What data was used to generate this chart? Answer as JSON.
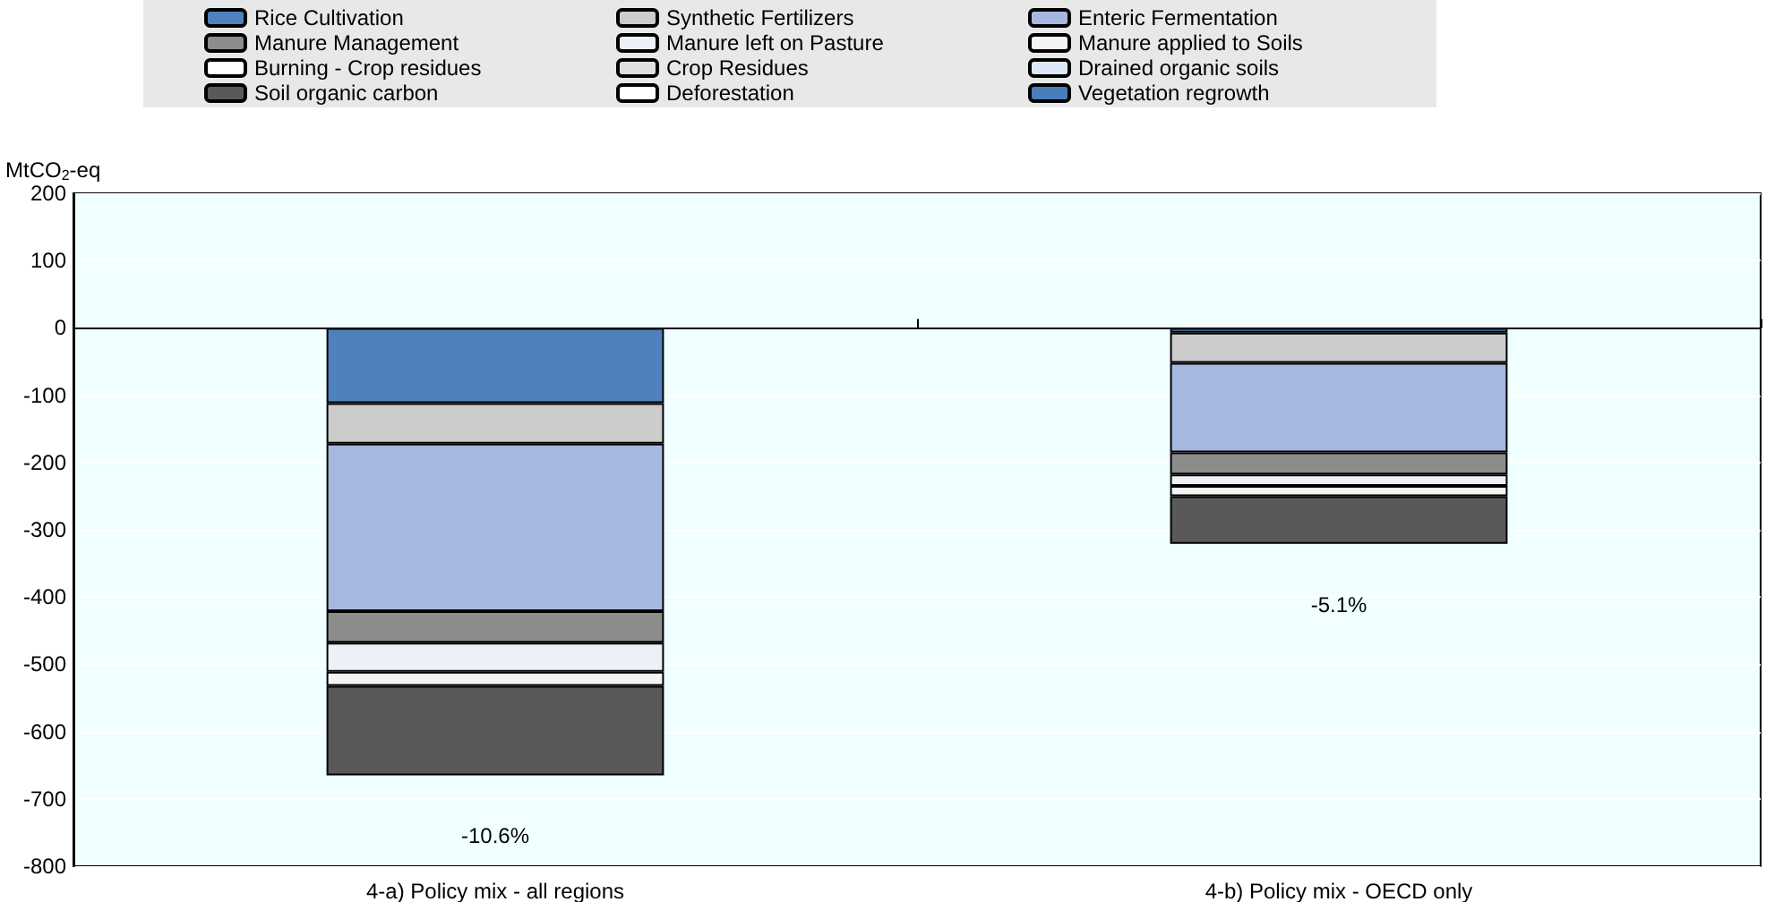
{
  "chart_data": {
    "type": "bar",
    "stacked": true,
    "ylabel": "MtCO$_{2}$-eq",
    "categories": [
      "4-a) Policy mix - all regions",
      "4-b) Policy mix - OECD only"
    ],
    "series": [
      {
        "name": "Rice Cultivation",
        "color": "#4f81bd",
        "values": [
          -112,
          -7
        ]
      },
      {
        "name": "Synthetic Fertilizers",
        "color": "#cccccc",
        "values": [
          -60,
          -45
        ]
      },
      {
        "name": "Enteric Fermentation",
        "color": "#a6b8e0",
        "values": [
          -249,
          -133
        ]
      },
      {
        "name": "Manure Management",
        "color": "#8c8c8c",
        "values": [
          -47,
          -33
        ]
      },
      {
        "name": "Manure left on Pasture",
        "color": "#eef0f8",
        "values": [
          -43,
          -17
        ]
      },
      {
        "name": "Manure applied to Soils",
        "color": "#f4f4f4",
        "values": [
          -21,
          -15
        ]
      },
      {
        "name": "Burning - Crop residues",
        "color": "#ffffff",
        "values": [
          null,
          null
        ]
      },
      {
        "name": "Crop Residues",
        "color": "#e0e0e0",
        "values": [
          null,
          null
        ]
      },
      {
        "name": "Drained organic soils",
        "color": "#dce8f8",
        "values": [
          null,
          null
        ]
      },
      {
        "name": "Soil organic carbon",
        "color": "#595959",
        "values": [
          -133,
          -71
        ]
      },
      {
        "name": "Deforestation",
        "color": "#ffffff",
        "values": [
          null,
          null
        ]
      },
      {
        "name": "Vegetation regrowth",
        "color": "#4a7ebb",
        "values": [
          null,
          null
        ]
      }
    ],
    "ylim": [
      -800,
      200
    ],
    "yticks": [
      -800,
      -700,
      -600,
      -500,
      -400,
      -300,
      -200,
      -100,
      0,
      100,
      200
    ],
    "ref_lines": [
      {
        "axis": "y",
        "value": 0
      }
    ],
    "annotations": [
      "-10.6%",
      "-5.1%"
    ],
    "grid": "y",
    "legend": "top"
  }
}
